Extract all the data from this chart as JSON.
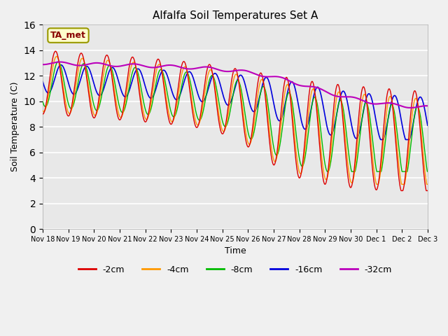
{
  "title": "Alfalfa Soil Temperatures Set A",
  "xlabel": "Time",
  "ylabel": "Soil Temperature (C)",
  "ylim": [
    0,
    16
  ],
  "yticks": [
    0,
    2,
    4,
    6,
    8,
    10,
    12,
    14,
    16
  ],
  "plot_bg_color": "#e8e8e8",
  "fig_bg_color": "#f0f0f0",
  "colors": {
    "-2cm": "#dd0000",
    "-4cm": "#ff9900",
    "-8cm": "#00bb00",
    "-16cm": "#0000dd",
    "-32cm": "#bb00bb"
  },
  "legend_labels": [
    "-2cm",
    "-4cm",
    "-8cm",
    "-16cm",
    "-32cm"
  ],
  "annotation_label": "TA_met",
  "annotation_color": "#880000",
  "annotation_bg": "#ffffcc",
  "annotation_edge": "#999900"
}
